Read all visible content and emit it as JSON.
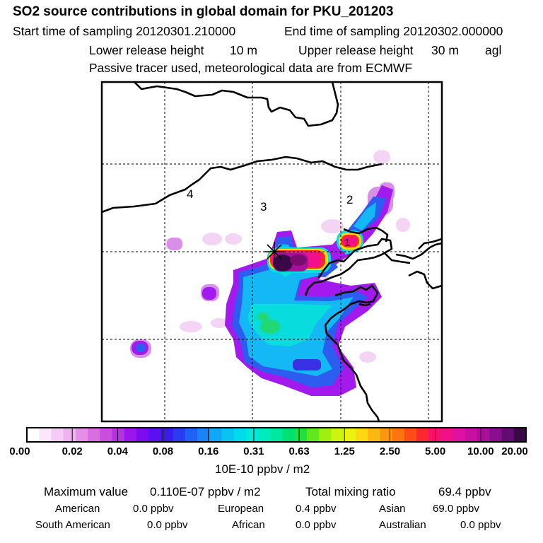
{
  "header": {
    "title": "SO2 source contributions in global domain for PKU_201203",
    "start_label": "Start time of sampling 20120301.210000",
    "end_label": "End time of sampling 20120302.000000",
    "lower_label": "Lower release height",
    "lower_value": "10 m",
    "upper_label": "Upper release height",
    "upper_value": "30 m",
    "upper_ref": "agl",
    "tracer_note": "Passive tracer used, meteorological data are from ECMWF"
  },
  "map": {
    "region_labels": [
      "4",
      "3",
      "2",
      "1"
    ]
  },
  "colorbar": {
    "tick_labels": [
      "0.00",
      "0.02",
      "0.04",
      "0.08",
      "0.16",
      "0.31",
      "0.63",
      "1.25",
      "2.50",
      "5.00",
      "10.00",
      "20.00"
    ],
    "unit": "10E-10 ppbv / m2",
    "colors": [
      "#ffffff",
      "#fbe6fb",
      "#f5ccf5",
      "#eeb3ef",
      "#e58fe8",
      "#d86ee0",
      "#c94ee0",
      "#b630e6",
      "#9a16ec",
      "#7a0cee",
      "#5a10f0",
      "#3a1ce8",
      "#2a3cf0",
      "#2060f4",
      "#1a84f6",
      "#12a6f6",
      "#0ac4f0",
      "#00dcea",
      "#00e8d8",
      "#00ecc0",
      "#00e8a0",
      "#00e070",
      "#20e040",
      "#60e81c",
      "#9ef010",
      "#ccf410",
      "#eef010",
      "#fcd810",
      "#fcb810",
      "#fc9810",
      "#fc7410",
      "#fc4c18",
      "#fc2830",
      "#f8106a",
      "#f0108a",
      "#e010a0",
      "#c810a0",
      "#a8109a",
      "#88108e",
      "#600c70",
      "#3a0846"
    ]
  },
  "stats": {
    "max_label": "Maximum value",
    "max_value": "0.110E-07 ppbv / m2",
    "total_label": "Total mixing ratio",
    "total_value": "69.4 ppbv",
    "regions": [
      {
        "name": "American",
        "value": "0.0 ppbv"
      },
      {
        "name": "European",
        "value": "0.4 ppbv"
      },
      {
        "name": "Asian",
        "value": "69.0 ppbv"
      },
      {
        "name": "South American",
        "value": "0.0 ppbv"
      },
      {
        "name": "African",
        "value": "0.0 ppbv"
      },
      {
        "name": "Australian",
        "value": "0.0 ppbv"
      }
    ]
  }
}
